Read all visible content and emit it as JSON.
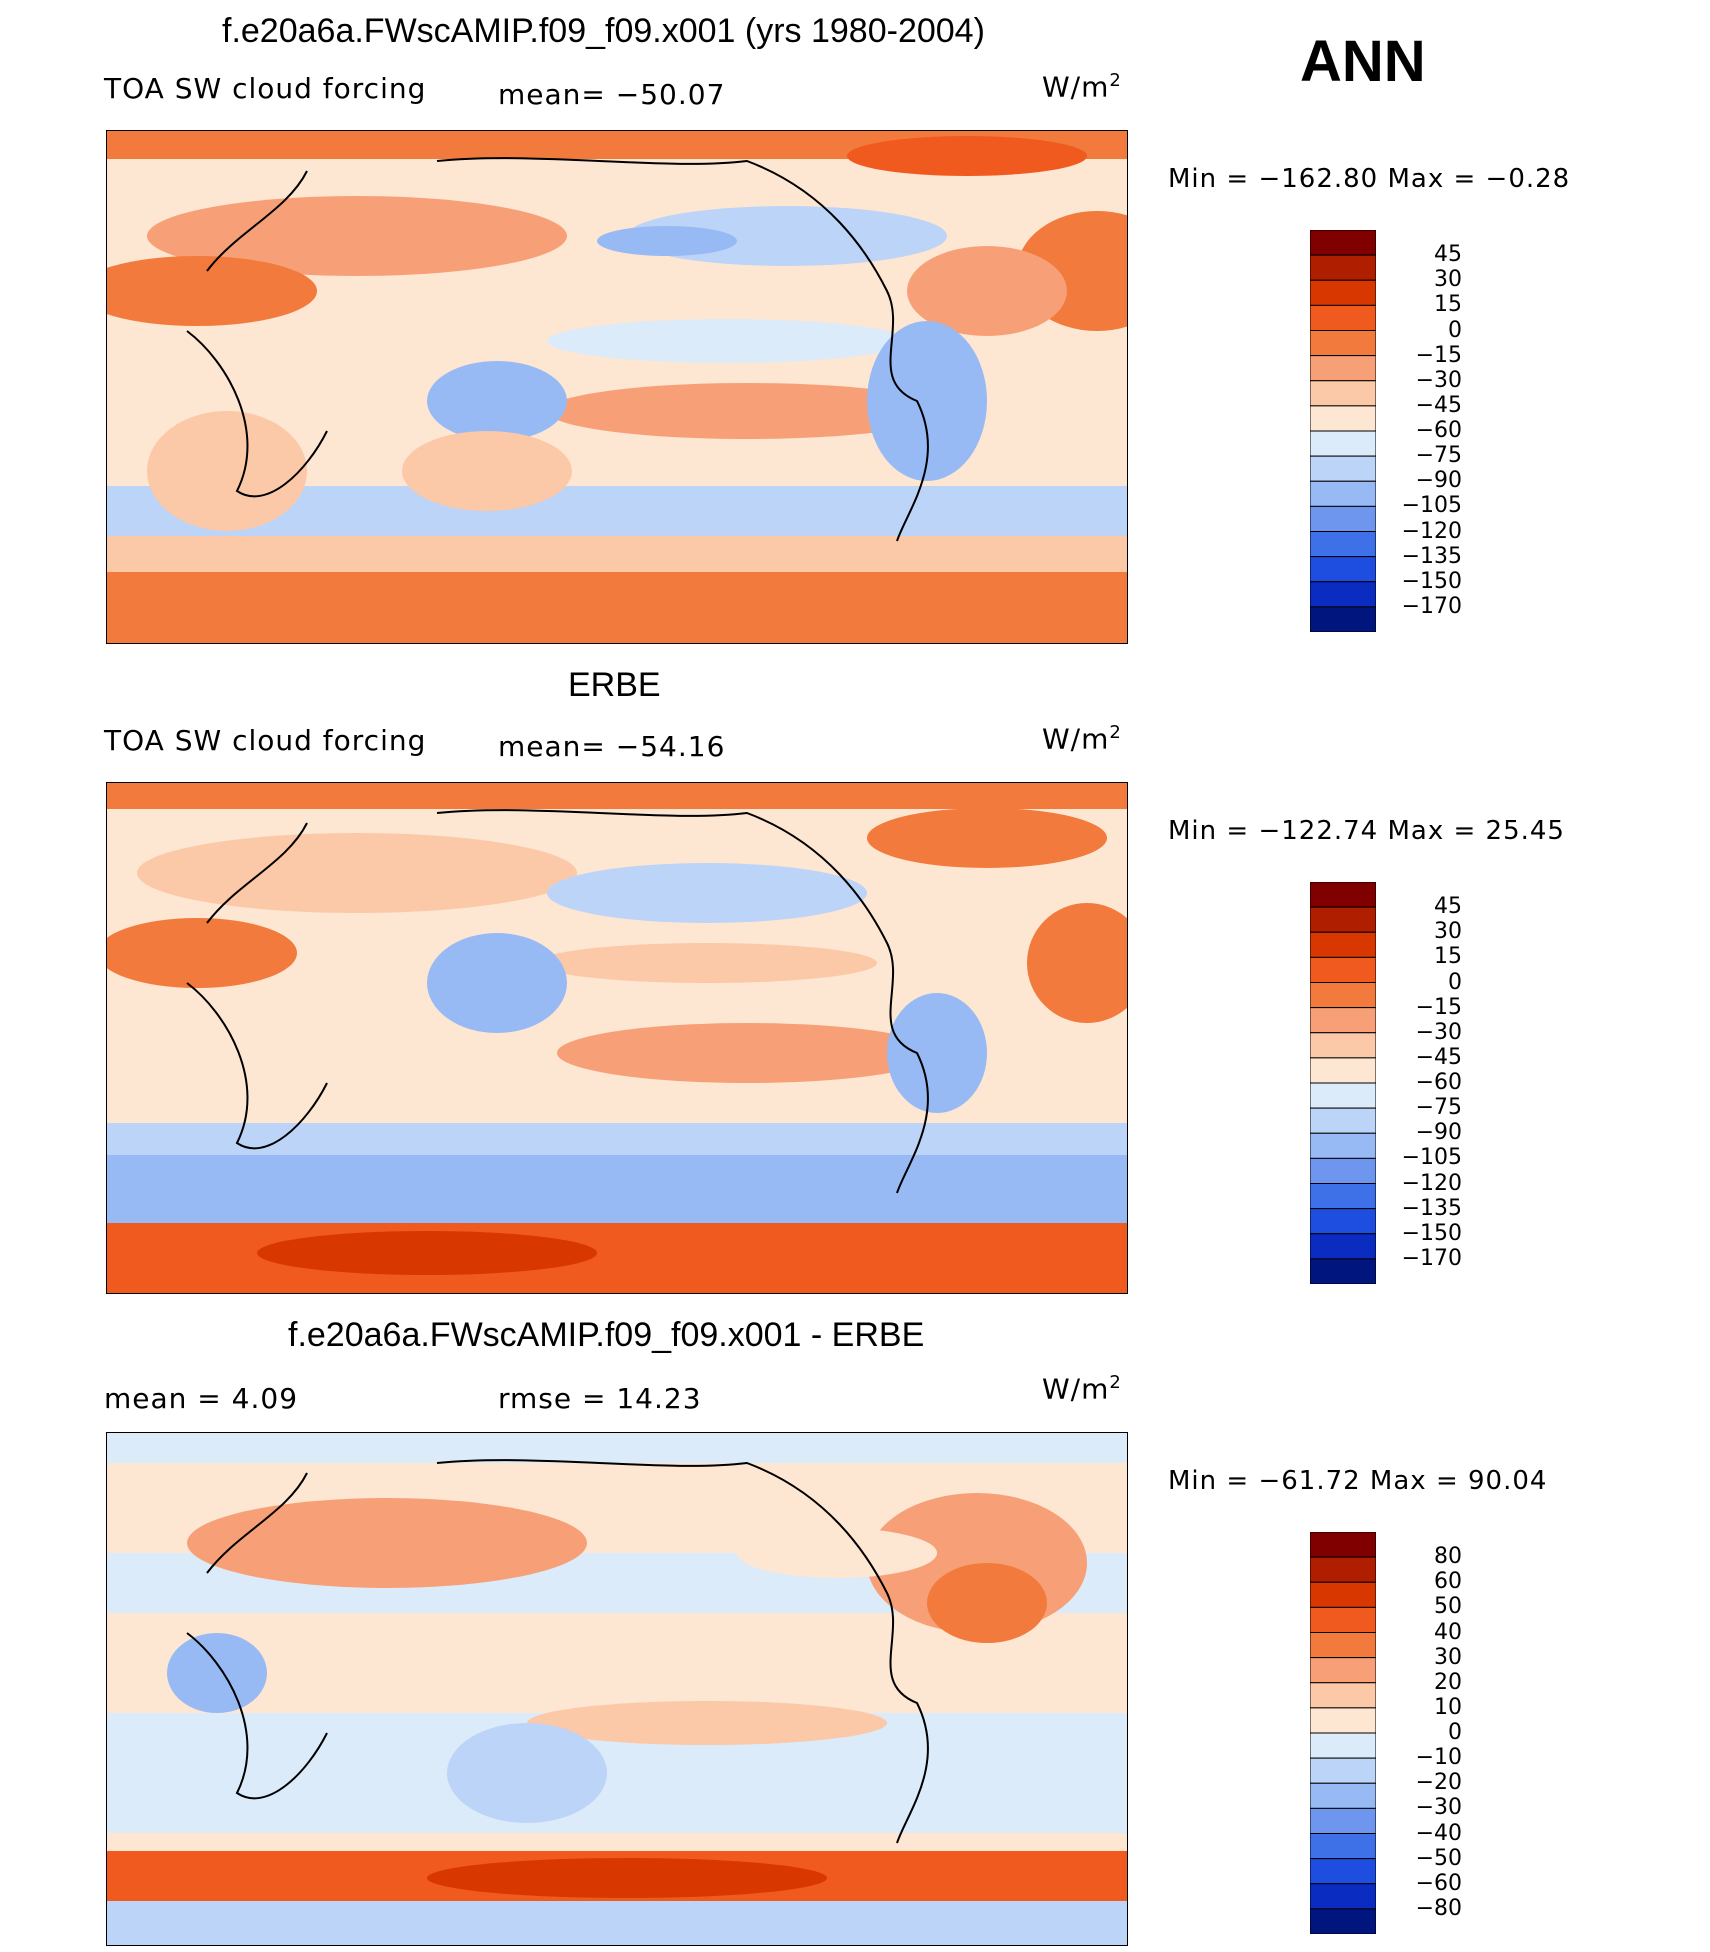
{
  "header": {
    "season": "ANN"
  },
  "panels": [
    {
      "title": "f.e20a6a.FWscAMIP.f09_f09.x001 (yrs 1980-2004)",
      "left_label": "TOA SW cloud forcing",
      "mid_label": "mean= −50.07",
      "units": "W/m",
      "units_exp": "2",
      "minmax": "Min  =  −162.80  Max  =    −0.28",
      "colorbar": [
        "45",
        "30",
        "15",
        "0",
        "−15",
        "−30",
        "−45",
        "−60",
        "−75",
        "−90",
        "−105",
        "−120",
        "−135",
        "−150",
        "−170"
      ]
    },
    {
      "title": "ERBE",
      "left_label": "TOA SW cloud forcing",
      "mid_label": "mean= −54.16",
      "units": "W/m",
      "units_exp": "2",
      "minmax": "Min  =  −122.74  Max  =   25.45",
      "colorbar": [
        "45",
        "30",
        "15",
        "0",
        "−15",
        "−30",
        "−45",
        "−60",
        "−75",
        "−90",
        "−105",
        "−120",
        "−135",
        "−150",
        "−170"
      ]
    },
    {
      "title": "f.e20a6a.FWscAMIP.f09_f09.x001 - ERBE",
      "left_label": "mean  =     4.09",
      "mid_label": "rmse  =    14.23",
      "units": "W/m",
      "units_exp": "2",
      "minmax": "Min  =  −61.72  Max  =   90.04",
      "colorbar": [
        "80",
        "60",
        "50",
        "40",
        "30",
        "20",
        "10",
        "0",
        "−10",
        "−20",
        "−30",
        "−40",
        "−50",
        "−60",
        "−80"
      ]
    }
  ],
  "colors": {
    "bar16": [
      "#800000",
      "#b01e00",
      "#d83800",
      "#f05a1e",
      "#f27a3c",
      "#f7a078",
      "#fbc8a8",
      "#fde6d2",
      "#dcebfa",
      "#bcd4f8",
      "#98baf4",
      "#6e96ee",
      "#3e70e8",
      "#1e4ee0",
      "#0a2cc0",
      "#00157e"
    ]
  },
  "chart_data": [
    {
      "type": "heatmap",
      "title": "f.e20a6a.FWscAMIP.f09_f09.x001 (yrs 1980-2004)",
      "subtitle": "TOA SW cloud forcing",
      "mean": -50.07,
      "min": -162.8,
      "max": -0.28,
      "units": "W/m2",
      "contour_levels": [
        -170,
        -150,
        -135,
        -120,
        -105,
        -90,
        -75,
        -60,
        -45,
        -30,
        -15,
        0,
        15,
        30,
        45
      ]
    },
    {
      "type": "heatmap",
      "title": "ERBE",
      "subtitle": "TOA SW cloud forcing",
      "mean": -54.16,
      "min": -122.74,
      "max": 25.45,
      "units": "W/m2",
      "contour_levels": [
        -170,
        -150,
        -135,
        -120,
        -105,
        -90,
        -75,
        -60,
        -45,
        -30,
        -15,
        0,
        15,
        30,
        45
      ]
    },
    {
      "type": "heatmap",
      "title": "f.e20a6a.FWscAMIP.f09_f09.x001 - ERBE",
      "mean": 4.09,
      "rmse": 14.23,
      "min": -61.72,
      "max": 90.04,
      "units": "W/m2",
      "contour_levels": [
        -80,
        -60,
        -50,
        -40,
        -30,
        -20,
        -10,
        0,
        10,
        20,
        30,
        40,
        50,
        60,
        80
      ]
    }
  ]
}
